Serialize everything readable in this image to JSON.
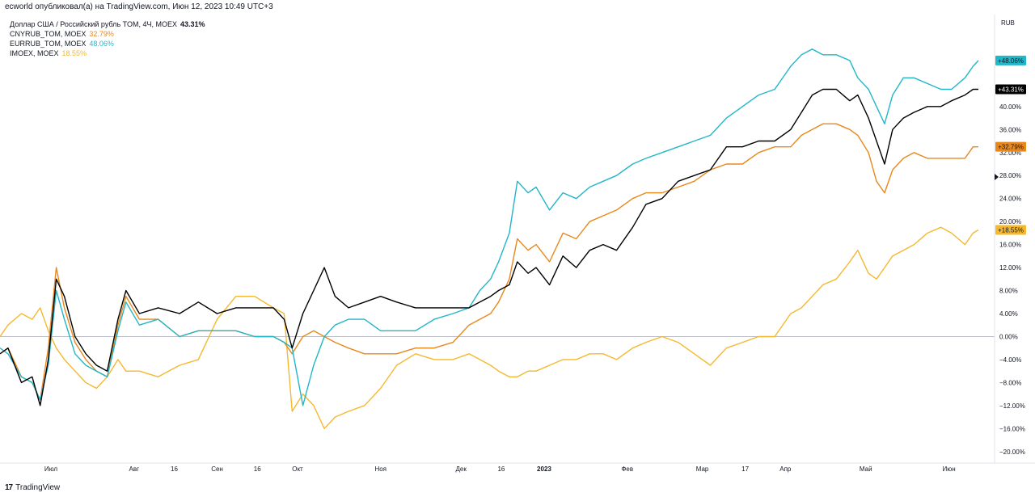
{
  "header": {
    "text": "ecworld опубликовал(а) на TradingView.com, Июн 12, 2023 10:49 UTC+3"
  },
  "footer": {
    "logo_glyph": "17",
    "brand": "TradingView"
  },
  "chart_data": {
    "type": "line",
    "y_unit": "%",
    "ylabel": "RUB",
    "ylim": [
      -22,
      56
    ],
    "y_ticks": [
      -20,
      -16,
      -12,
      -8,
      -4,
      0,
      4,
      8,
      12,
      16,
      20,
      24,
      28,
      32,
      36,
      40
    ],
    "y_tick_labels": [
      "−20.00%",
      "−16.00%",
      "−12.00%",
      "−8.00%",
      "−4.00%",
      "0.00%",
      "4.00%",
      "8.00%",
      "12.00%",
      "16.00%",
      "20.00%",
      "24.00%",
      "28.00%",
      "32.00%",
      "36.00%",
      "40.00%"
    ],
    "x_range": [
      "2022-06-12",
      "2023-06-12"
    ],
    "x_ticks": [
      {
        "date": "2022-07-01",
        "label": "Июл"
      },
      {
        "date": "2022-08-01",
        "label": "Авг"
      },
      {
        "date": "2022-08-16",
        "label": "16"
      },
      {
        "date": "2022-09-01",
        "label": "Сен"
      },
      {
        "date": "2022-09-16",
        "label": "16"
      },
      {
        "date": "2022-10-01",
        "label": "Окт"
      },
      {
        "date": "2022-11-01",
        "label": "Ноя"
      },
      {
        "date": "2022-12-01",
        "label": "Дек"
      },
      {
        "date": "2022-12-16",
        "label": "16"
      },
      {
        "date": "2023-01-01",
        "label": "2023",
        "bold": true
      },
      {
        "date": "2023-02-01",
        "label": "Фев"
      },
      {
        "date": "2023-03-01",
        "label": "Мар"
      },
      {
        "date": "2023-03-17",
        "label": "17"
      },
      {
        "date": "2023-04-01",
        "label": "Апр"
      },
      {
        "date": "2023-05-01",
        "label": "Май"
      },
      {
        "date": "2023-06-01",
        "label": "Июн"
      }
    ],
    "grid": false,
    "legend_position": "top-left",
    "series": [
      {
        "name": "Доллар США / Российский рубль TOM, 4Ч, MOEX",
        "legend_value": "43.31%",
        "badge": "+43.31%",
        "color": "#000000",
        "x": [
          "2022-06-12",
          "2022-06-15",
          "2022-06-20",
          "2022-06-24",
          "2022-06-27",
          "2022-06-30",
          "2022-07-03",
          "2022-07-06",
          "2022-07-10",
          "2022-07-14",
          "2022-07-18",
          "2022-07-22",
          "2022-07-26",
          "2022-07-29",
          "2022-08-03",
          "2022-08-10",
          "2022-08-18",
          "2022-08-25",
          "2022-09-01",
          "2022-09-08",
          "2022-09-15",
          "2022-09-22",
          "2022-09-26",
          "2022-09-29",
          "2022-10-03",
          "2022-10-07",
          "2022-10-11",
          "2022-10-15",
          "2022-10-20",
          "2022-10-26",
          "2022-11-01",
          "2022-11-07",
          "2022-11-14",
          "2022-11-21",
          "2022-11-28",
          "2022-12-04",
          "2022-12-08",
          "2022-12-12",
          "2022-12-15",
          "2022-12-19",
          "2022-12-22",
          "2022-12-26",
          "2022-12-29",
          "2023-01-03",
          "2023-01-08",
          "2023-01-13",
          "2023-01-18",
          "2023-01-23",
          "2023-01-28",
          "2023-02-03",
          "2023-02-08",
          "2023-02-14",
          "2023-02-20",
          "2023-02-26",
          "2023-03-04",
          "2023-03-10",
          "2023-03-16",
          "2023-03-22",
          "2023-03-28",
          "2023-04-03",
          "2023-04-07",
          "2023-04-11",
          "2023-04-15",
          "2023-04-20",
          "2023-04-25",
          "2023-04-28",
          "2023-05-02",
          "2023-05-05",
          "2023-05-08",
          "2023-05-11",
          "2023-05-15",
          "2023-05-19",
          "2023-05-24",
          "2023-05-29",
          "2023-06-02",
          "2023-06-07",
          "2023-06-10",
          "2023-06-12"
        ],
        "y": [
          -3,
          -2,
          -8,
          -7,
          -12,
          -4,
          10,
          7,
          0,
          -3,
          -5,
          -6,
          3,
          8,
          4,
          5,
          4,
          6,
          4,
          5,
          5,
          5,
          3,
          -2,
          4,
          8,
          12,
          7,
          5,
          6,
          7,
          6,
          5,
          5,
          5,
          5,
          6,
          7,
          8,
          9,
          13,
          11,
          12,
          9,
          14,
          12,
          15,
          16,
          15,
          19,
          23,
          24,
          27,
          28,
          29,
          33,
          33,
          34,
          34,
          36,
          39,
          42,
          43,
          43,
          41,
          42,
          38,
          34,
          30,
          36,
          38,
          39,
          40,
          40,
          41,
          42,
          43,
          43
        ]
      },
      {
        "name": "CNYRUB_TOM, MOEX",
        "legend_value": "32.79%",
        "badge": "+32.79%",
        "color": "#e8881c",
        "x": [
          "2022-06-12",
          "2022-06-15",
          "2022-06-20",
          "2022-06-24",
          "2022-06-27",
          "2022-06-30",
          "2022-07-03",
          "2022-07-06",
          "2022-07-10",
          "2022-07-14",
          "2022-07-18",
          "2022-07-22",
          "2022-07-26",
          "2022-07-29",
          "2022-08-03",
          "2022-08-10",
          "2022-08-18",
          "2022-08-25",
          "2022-09-01",
          "2022-09-08",
          "2022-09-15",
          "2022-09-22",
          "2022-09-26",
          "2022-09-29",
          "2022-10-03",
          "2022-10-07",
          "2022-10-11",
          "2022-10-15",
          "2022-10-20",
          "2022-10-26",
          "2022-11-01",
          "2022-11-07",
          "2022-11-14",
          "2022-11-21",
          "2022-11-28",
          "2022-12-04",
          "2022-12-08",
          "2022-12-12",
          "2022-12-15",
          "2022-12-19",
          "2022-12-22",
          "2022-12-26",
          "2022-12-29",
          "2023-01-03",
          "2023-01-08",
          "2023-01-13",
          "2023-01-18",
          "2023-01-23",
          "2023-01-28",
          "2023-02-03",
          "2023-02-08",
          "2023-02-14",
          "2023-02-20",
          "2023-02-26",
          "2023-03-04",
          "2023-03-10",
          "2023-03-16",
          "2023-03-22",
          "2023-03-28",
          "2023-04-03",
          "2023-04-07",
          "2023-04-11",
          "2023-04-15",
          "2023-04-20",
          "2023-04-25",
          "2023-04-28",
          "2023-05-02",
          "2023-05-05",
          "2023-05-08",
          "2023-05-11",
          "2023-05-15",
          "2023-05-19",
          "2023-05-24",
          "2023-05-29",
          "2023-06-02",
          "2023-06-07",
          "2023-06-10",
          "2023-06-12"
        ],
        "y": [
          -3,
          -2,
          -7,
          -8,
          -11,
          -2,
          12,
          5,
          -1,
          -4,
          -6,
          -7,
          2,
          7,
          3,
          3,
          0,
          1,
          1,
          1,
          0,
          0,
          -1,
          -3,
          0,
          1,
          0,
          -1,
          -2,
          -3,
          -3,
          -3,
          -2,
          -2,
          -1,
          2,
          3,
          4,
          6,
          10,
          17,
          15,
          16,
          13,
          18,
          17,
          20,
          21,
          22,
          24,
          25,
          25,
          26,
          27,
          29,
          30,
          30,
          32,
          33,
          33,
          35,
          36,
          37,
          37,
          36,
          35,
          32,
          27,
          25,
          29,
          31,
          32,
          31,
          31,
          31,
          31,
          33,
          33
        ]
      },
      {
        "name": "EURRUB_TOM, MOEX",
        "legend_value": "48.06%",
        "badge": "+48.06%",
        "color": "#21b6c8",
        "x": [
          "2022-06-12",
          "2022-06-15",
          "2022-06-20",
          "2022-06-24",
          "2022-06-27",
          "2022-06-30",
          "2022-07-03",
          "2022-07-06",
          "2022-07-10",
          "2022-07-14",
          "2022-07-18",
          "2022-07-22",
          "2022-07-26",
          "2022-07-29",
          "2022-08-03",
          "2022-08-10",
          "2022-08-18",
          "2022-08-25",
          "2022-09-01",
          "2022-09-08",
          "2022-09-15",
          "2022-09-22",
          "2022-09-26",
          "2022-09-29",
          "2022-10-03",
          "2022-10-07",
          "2022-10-11",
          "2022-10-15",
          "2022-10-20",
          "2022-10-26",
          "2022-11-01",
          "2022-11-07",
          "2022-11-14",
          "2022-11-21",
          "2022-11-28",
          "2022-12-04",
          "2022-12-08",
          "2022-12-12",
          "2022-12-15",
          "2022-12-19",
          "2022-12-22",
          "2022-12-26",
          "2022-12-29",
          "2023-01-03",
          "2023-01-08",
          "2023-01-13",
          "2023-01-18",
          "2023-01-23",
          "2023-01-28",
          "2023-02-03",
          "2023-02-08",
          "2023-02-14",
          "2023-02-20",
          "2023-02-26",
          "2023-03-04",
          "2023-03-10",
          "2023-03-16",
          "2023-03-22",
          "2023-03-28",
          "2023-04-03",
          "2023-04-07",
          "2023-04-11",
          "2023-04-15",
          "2023-04-20",
          "2023-04-25",
          "2023-04-28",
          "2023-05-02",
          "2023-05-05",
          "2023-05-08",
          "2023-05-11",
          "2023-05-15",
          "2023-05-19",
          "2023-05-24",
          "2023-05-29",
          "2023-06-02",
          "2023-06-07",
          "2023-06-10",
          "2023-06-12"
        ],
        "y": [
          -2,
          -3,
          -7,
          -8,
          -11,
          -5,
          8,
          3,
          -3,
          -5,
          -6,
          -7,
          1,
          6,
          2,
          3,
          0,
          1,
          1,
          1,
          0,
          0,
          -1,
          -2,
          -12,
          -5,
          0,
          2,
          3,
          3,
          1,
          1,
          1,
          3,
          4,
          5,
          8,
          10,
          13,
          18,
          27,
          25,
          26,
          22,
          25,
          24,
          26,
          27,
          28,
          30,
          31,
          32,
          33,
          34,
          35,
          38,
          40,
          42,
          43,
          47,
          49,
          50,
          49,
          49,
          48,
          45,
          43,
          40,
          37,
          42,
          45,
          45,
          44,
          43,
          43,
          45,
          47,
          48
        ]
      },
      {
        "name": "IMOEX, MOEX",
        "legend_value": "18.55%",
        "badge": "+18.55%",
        "color": "#f5b82e",
        "x": [
          "2022-06-12",
          "2022-06-15",
          "2022-06-20",
          "2022-06-24",
          "2022-06-27",
          "2022-06-30",
          "2022-07-03",
          "2022-07-06",
          "2022-07-10",
          "2022-07-14",
          "2022-07-18",
          "2022-07-22",
          "2022-07-26",
          "2022-07-29",
          "2022-08-03",
          "2022-08-10",
          "2022-08-18",
          "2022-08-25",
          "2022-09-01",
          "2022-09-08",
          "2022-09-15",
          "2022-09-22",
          "2022-09-26",
          "2022-09-29",
          "2022-10-03",
          "2022-10-07",
          "2022-10-11",
          "2022-10-15",
          "2022-10-20",
          "2022-10-26",
          "2022-11-01",
          "2022-11-07",
          "2022-11-14",
          "2022-11-21",
          "2022-11-28",
          "2022-12-04",
          "2022-12-08",
          "2022-12-12",
          "2022-12-15",
          "2022-12-19",
          "2022-12-22",
          "2022-12-26",
          "2022-12-29",
          "2023-01-03",
          "2023-01-08",
          "2023-01-13",
          "2023-01-18",
          "2023-01-23",
          "2023-01-28",
          "2023-02-03",
          "2023-02-08",
          "2023-02-14",
          "2023-02-20",
          "2023-02-26",
          "2023-03-04",
          "2023-03-10",
          "2023-03-16",
          "2023-03-22",
          "2023-03-28",
          "2023-04-03",
          "2023-04-07",
          "2023-04-11",
          "2023-04-15",
          "2023-04-20",
          "2023-04-25",
          "2023-04-28",
          "2023-05-02",
          "2023-05-05",
          "2023-05-08",
          "2023-05-11",
          "2023-05-15",
          "2023-05-19",
          "2023-05-24",
          "2023-05-29",
          "2023-06-02",
          "2023-06-07",
          "2023-06-10",
          "2023-06-12"
        ],
        "y": [
          0,
          2,
          4,
          3,
          5,
          1,
          -2,
          -4,
          -6,
          -8,
          -9,
          -7,
          -4,
          -6,
          -6,
          -7,
          -5,
          -4,
          3,
          7,
          7,
          5,
          4,
          -13,
          -10,
          -12,
          -16,
          -14,
          -13,
          -12,
          -9,
          -5,
          -3,
          -4,
          -4,
          -3,
          -4,
          -5,
          -6,
          -7,
          -7,
          -6,
          -6,
          -5,
          -4,
          -4,
          -3,
          -3,
          -4,
          -2,
          -1,
          0,
          -1,
          -3,
          -5,
          -2,
          -1,
          0,
          0,
          4,
          5,
          7,
          9,
          10,
          13,
          15,
          11,
          10,
          12,
          14,
          15,
          16,
          18,
          19,
          18,
          16,
          18,
          18.55
        ]
      }
    ]
  }
}
